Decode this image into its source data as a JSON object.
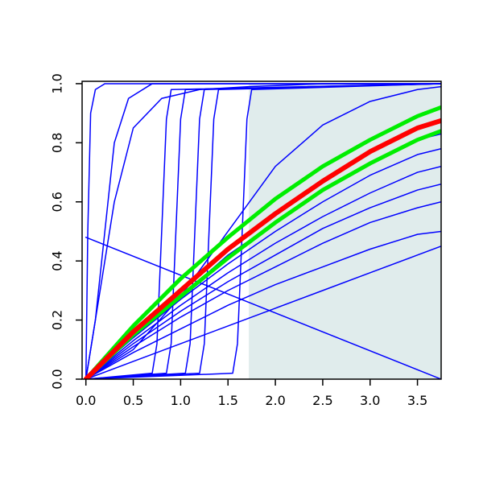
{
  "chart_data": {
    "type": "line",
    "xlim": [
      -0.04,
      3.75
    ],
    "ylim": [
      0,
      1.008
    ],
    "xticks": [
      {
        "value": 0,
        "label": "0.0"
      },
      {
        "value": 0.5,
        "label": "0.5"
      },
      {
        "value": 1,
        "label": "1.0"
      },
      {
        "value": 1.5,
        "label": "1.5"
      },
      {
        "value": 2,
        "label": "2.0"
      },
      {
        "value": 2.5,
        "label": "2.5"
      },
      {
        "value": 3,
        "label": "3.0"
      },
      {
        "value": 3.5,
        "label": "3.5"
      }
    ],
    "yticks": [
      {
        "value": 0,
        "label": "0.0"
      },
      {
        "value": 0.2,
        "label": "0.2"
      },
      {
        "value": 0.4,
        "label": "0.4"
      },
      {
        "value": 0.6,
        "label": "0.6"
      },
      {
        "value": 0.8,
        "label": "0.8"
      },
      {
        "value": 1,
        "label": "1.0"
      }
    ],
    "shaded_region": {
      "x": [
        1.72,
        3.75
      ],
      "y": [
        0,
        1
      ],
      "color": "#e0ecec"
    },
    "series": [
      {
        "color": "#0000ff",
        "width": 1.5,
        "x": [
          0,
          0.5,
          1,
          1.5,
          2,
          2.5,
          3,
          3.5,
          3.75
        ],
        "values": [
          0,
          0.06,
          0.12,
          0.18,
          0.24,
          0.3,
          0.36,
          0.42,
          0.45
        ]
      },
      {
        "color": "#0000ff",
        "width": 1.5,
        "x": [
          0,
          0.5,
          1,
          1.5,
          2,
          2.5,
          3,
          3.5,
          3.75
        ],
        "values": [
          0,
          0.09,
          0.17,
          0.25,
          0.32,
          0.38,
          0.44,
          0.49,
          0.5
        ]
      },
      {
        "color": "#0000ff",
        "width": 1.5,
        "x": [
          0,
          0.5,
          1,
          1.5,
          2,
          2.5,
          3,
          3.5,
          3.75
        ],
        "values": [
          0,
          0.11,
          0.21,
          0.3,
          0.38,
          0.46,
          0.53,
          0.58,
          0.6
        ]
      },
      {
        "color": "#0000ff",
        "width": 1.5,
        "x": [
          0,
          0.5,
          1,
          1.5,
          2,
          2.5,
          3,
          3.5,
          3.75
        ],
        "values": [
          0,
          0.12,
          0.23,
          0.33,
          0.42,
          0.51,
          0.58,
          0.64,
          0.66
        ]
      },
      {
        "color": "#0000ff",
        "width": 1.5,
        "x": [
          0,
          0.5,
          1,
          1.5,
          2,
          2.5,
          3,
          3.5,
          3.75
        ],
        "values": [
          0,
          0.13,
          0.25,
          0.36,
          0.46,
          0.55,
          0.63,
          0.7,
          0.72
        ]
      },
      {
        "color": "#0000ff",
        "width": 1.5,
        "x": [
          0,
          0.5,
          1,
          1.5,
          2,
          2.5,
          3,
          3.5,
          3.75
        ],
        "values": [
          0,
          0.14,
          0.27,
          0.39,
          0.5,
          0.6,
          0.69,
          0.76,
          0.78
        ]
      },
      {
        "color": "#0000ff",
        "width": 1.5,
        "x": [
          0,
          0.5,
          1,
          1.5,
          2,
          2.5,
          3,
          3.5,
          3.75
        ],
        "values": [
          0,
          0.15,
          0.28,
          0.42,
          0.53,
          0.64,
          0.73,
          0.81,
          0.83
        ]
      },
      {
        "color": "#0000ff",
        "width": 1.5,
        "x": [
          0,
          3.75
        ],
        "values": [
          0.48,
          0
        ]
      },
      {
        "color": "#0000ff",
        "width": 1.5,
        "x": [
          0,
          0.02,
          0.05,
          0.1,
          0.2,
          3.75
        ],
        "values": [
          0,
          0.5,
          0.9,
          0.98,
          1,
          1
        ]
      },
      {
        "color": "#0000ff",
        "width": 1.5,
        "x": [
          0,
          0.1,
          0.2,
          0.3,
          0.45,
          0.7,
          3.75
        ],
        "values": [
          0,
          0.2,
          0.5,
          0.8,
          0.95,
          1,
          1
        ]
      },
      {
        "color": "#0000ff",
        "width": 1.5,
        "x": [
          0,
          0.3,
          0.5,
          0.8,
          1.2,
          1.72,
          2.5,
          3.75
        ],
        "values": [
          0,
          0.6,
          0.85,
          0.95,
          0.98,
          0.99,
          1,
          1
        ]
      },
      {
        "color": "#0000ff",
        "width": 1.5,
        "x": [
          0,
          0.7,
          0.75,
          0.8,
          0.85,
          0.9,
          3.75
        ],
        "values": [
          0,
          0.02,
          0.12,
          0.5,
          0.88,
          0.98,
          1
        ]
      },
      {
        "color": "#0000ff",
        "width": 1.5,
        "x": [
          0,
          0.85,
          0.9,
          0.95,
          1,
          1.05,
          3.75
        ],
        "values": [
          0,
          0.02,
          0.12,
          0.5,
          0.88,
          0.98,
          1
        ]
      },
      {
        "color": "#0000ff",
        "width": 1.5,
        "x": [
          0,
          1.05,
          1.1,
          1.15,
          1.2,
          1.25,
          3.75
        ],
        "values": [
          0,
          0.02,
          0.12,
          0.5,
          0.88,
          0.98,
          1
        ]
      },
      {
        "color": "#0000ff",
        "width": 1.5,
        "x": [
          0,
          1.2,
          1.25,
          1.3,
          1.35,
          1.4,
          3.75
        ],
        "values": [
          0,
          0.02,
          0.12,
          0.5,
          0.88,
          0.98,
          1
        ]
      },
      {
        "color": "#0000ff",
        "width": 1.5,
        "x": [
          0,
          1.55,
          1.6,
          1.65,
          1.7,
          1.75,
          3.75
        ],
        "values": [
          0,
          0.02,
          0.12,
          0.5,
          0.88,
          0.98,
          1
        ]
      },
      {
        "color": "#0000ff",
        "width": 1.5,
        "x": [
          0,
          0.5,
          1,
          1.5,
          2,
          2.5,
          3,
          3.5,
          3.75
        ],
        "values": [
          0,
          0.1,
          0.28,
          0.5,
          0.72,
          0.86,
          0.94,
          0.98,
          0.99
        ]
      },
      {
        "color": "#00ee00",
        "width": 5,
        "x": [
          0,
          0.5,
          1,
          1.5,
          2,
          2.5,
          3,
          3.5,
          3.75
        ],
        "values": [
          0,
          0.18,
          0.34,
          0.48,
          0.61,
          0.72,
          0.81,
          0.89,
          0.92
        ]
      },
      {
        "color": "#00ee00",
        "width": 5,
        "x": [
          0,
          0.5,
          1,
          1.5,
          2,
          2.5,
          3,
          3.5,
          3.75
        ],
        "values": [
          0,
          0.15,
          0.28,
          0.41,
          0.53,
          0.64,
          0.73,
          0.81,
          0.84
        ]
      },
      {
        "color": "#ff0000",
        "width": 6,
        "x": [
          0,
          0.5,
          1,
          1.5,
          2,
          2.5,
          3,
          3.5,
          3.75
        ],
        "values": [
          0,
          0.16,
          0.3,
          0.44,
          0.56,
          0.67,
          0.77,
          0.85,
          0.875
        ]
      }
    ]
  }
}
